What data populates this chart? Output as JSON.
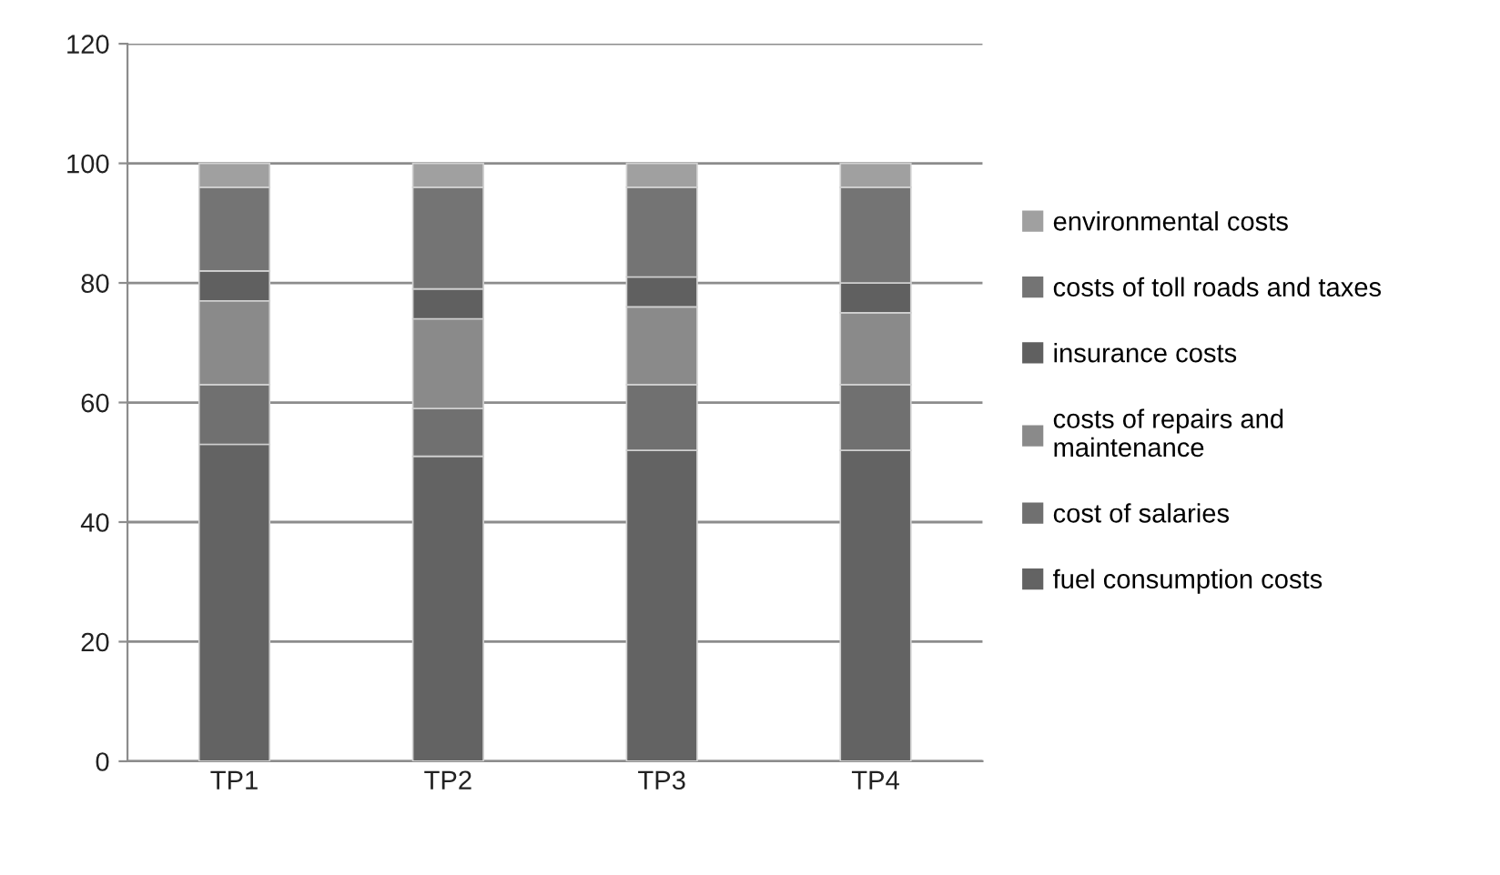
{
  "chart_data": {
    "type": "bar",
    "stacked": true,
    "categories": [
      "TP1",
      "TP2",
      "TP3",
      "TP4"
    ],
    "series": [
      {
        "name": "fuel consumption costs",
        "color": "#636363",
        "values": [
          53,
          51,
          52,
          52
        ]
      },
      {
        "name": "cost of salaries",
        "color": "#707070",
        "values": [
          10,
          8,
          11,
          11
        ]
      },
      {
        "name": "costs of repairs and\nmaintenance",
        "color": "#8a8a8a",
        "values": [
          14,
          15,
          13,
          12
        ]
      },
      {
        "name": "insurance costs",
        "color": "#606060",
        "values": [
          5,
          5,
          5,
          5
        ]
      },
      {
        "name": "costs of toll roads and taxes",
        "color": "#747474",
        "values": [
          14,
          17,
          15,
          16
        ]
      },
      {
        "name": "environmental costs",
        "color": "#a0a0a0",
        "values": [
          4,
          4,
          4,
          4
        ]
      }
    ],
    "ylim": [
      0,
      120
    ],
    "yticks": [
      0,
      20,
      40,
      60,
      80,
      100,
      120
    ],
    "grid": "y",
    "legend": "right"
  }
}
